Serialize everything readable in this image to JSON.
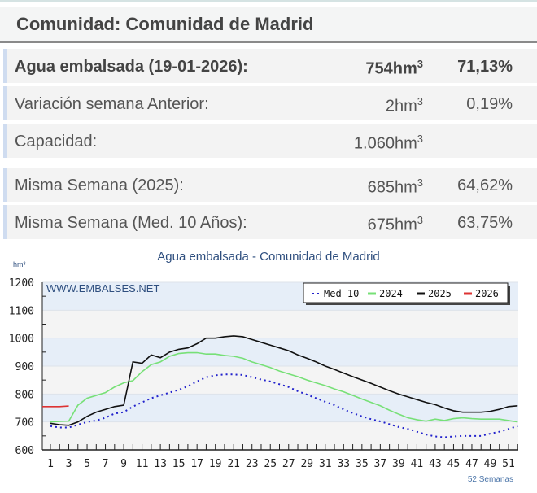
{
  "header": {
    "title": "Comunidad: Comunidad de Madrid"
  },
  "rows": [
    {
      "label": "Agua embalsada (19-01-2026):",
      "value": "754hm",
      "sup": "3",
      "pct": "71,13%"
    },
    {
      "label": "Variación semana Anterior:",
      "value": "2hm",
      "sup": "3",
      "pct": "0,19%"
    },
    {
      "label": "Capacidad:",
      "value": "1.060hm",
      "sup": "3",
      "pct": ""
    },
    {
      "label": "Misma Semana (2025):",
      "value": "685hm",
      "sup": "3",
      "pct": "64,62%"
    },
    {
      "label": "Misma Semana (Med. 10 Años):",
      "value": "675hm",
      "sup": "3",
      "pct": "63,75%"
    }
  ],
  "chart_data": {
    "type": "line",
    "title": "Agua embalsada - Comunidad de Madrid",
    "ylabel": "hm3",
    "xlabel": "52 Semanas",
    "watermark": "WWW.EMBALSES.NET",
    "ylim": [
      600,
      1200
    ],
    "yticks": [
      600,
      700,
      800,
      900,
      1000,
      1100,
      1200
    ],
    "xticks": [
      1,
      3,
      5,
      7,
      9,
      11,
      13,
      15,
      17,
      19,
      21,
      23,
      25,
      27,
      29,
      31,
      33,
      35,
      37,
      39,
      41,
      43,
      45,
      47,
      49,
      51
    ],
    "legend_position": "top-right",
    "series": [
      {
        "name": "Med 10",
        "color": "#2222cc",
        "dotted": true,
        "values": [
          685,
          680,
          680,
          690,
          700,
          705,
          715,
          730,
          735,
          755,
          770,
          785,
          795,
          805,
          815,
          828,
          845,
          860,
          867,
          870,
          870,
          868,
          860,
          852,
          845,
          835,
          825,
          810,
          798,
          785,
          772,
          760,
          745,
          732,
          720,
          710,
          702,
          692,
          682,
          675,
          665,
          655,
          648,
          645,
          648,
          650,
          650,
          650,
          658,
          665,
          675,
          685
        ]
      },
      {
        "name": "2024",
        "color": "#77e077",
        "values": [
          700,
          702,
          703,
          760,
          785,
          795,
          805,
          825,
          840,
          848,
          880,
          905,
          915,
          935,
          945,
          948,
          948,
          943,
          943,
          938,
          935,
          928,
          915,
          905,
          895,
          882,
          872,
          862,
          850,
          840,
          830,
          818,
          808,
          795,
          782,
          770,
          758,
          742,
          728,
          715,
          708,
          703,
          710,
          705,
          712,
          715,
          712,
          710,
          710,
          710,
          705,
          700
        ]
      },
      {
        "name": "2025",
        "color": "#111111",
        "values": [
          695,
          690,
          688,
          700,
          720,
          735,
          745,
          755,
          760,
          915,
          910,
          940,
          930,
          950,
          960,
          965,
          980,
          1000,
          1000,
          1005,
          1008,
          1005,
          995,
          985,
          975,
          965,
          955,
          940,
          928,
          915,
          900,
          888,
          875,
          862,
          850,
          838,
          825,
          812,
          800,
          790,
          780,
          770,
          762,
          750,
          740,
          735,
          735,
          735,
          738,
          745,
          755,
          758
        ]
      },
      {
        "name": "2026",
        "color": "#dd3333",
        "values": [
          755,
          755,
          757
        ]
      }
    ]
  }
}
